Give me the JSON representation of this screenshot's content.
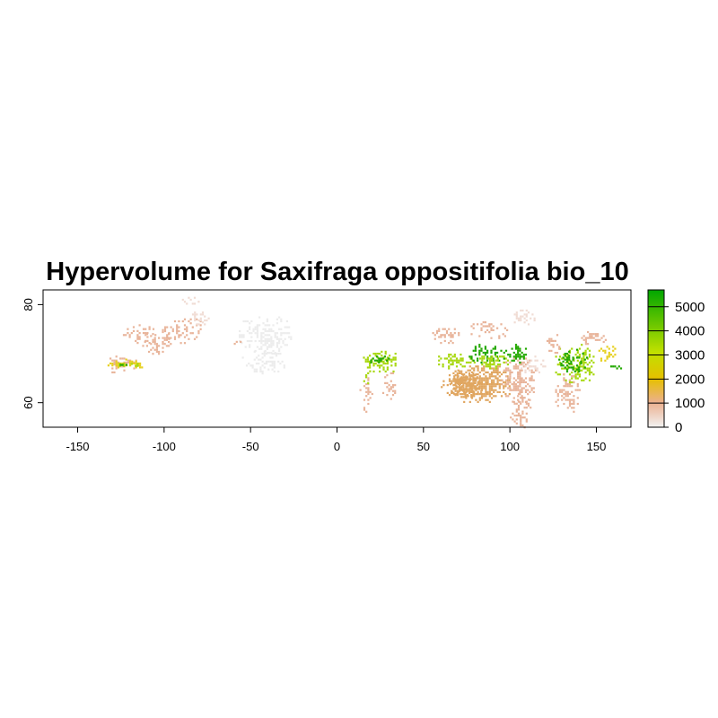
{
  "title": "Hypervolume for Saxifraga oppositifolia bio_10",
  "map": {
    "x_range": [
      -170,
      170
    ],
    "y_range": [
      55,
      83
    ],
    "x_ticks": [
      "-150",
      "-100",
      "-50",
      "0",
      "50",
      "100",
      "150"
    ],
    "y_ticks": [
      "60",
      "80"
    ]
  },
  "legend": {
    "ticks": [
      "0",
      "1000",
      "2000",
      "3000",
      "4000",
      "5000"
    ],
    "range": [
      0,
      5700
    ],
    "colors": [
      "#f2f2f2",
      "#ebb08f",
      "#e6c000",
      "#c0e000",
      "#00a600"
    ]
  },
  "palette": {
    "pale": "#f0dcd4",
    "salmon": "#e8b49a",
    "tan": "#e0a660",
    "yellow": "#e6d020",
    "lime": "#a8d810",
    "green": "#22a800",
    "grey": "#ececec"
  }
}
